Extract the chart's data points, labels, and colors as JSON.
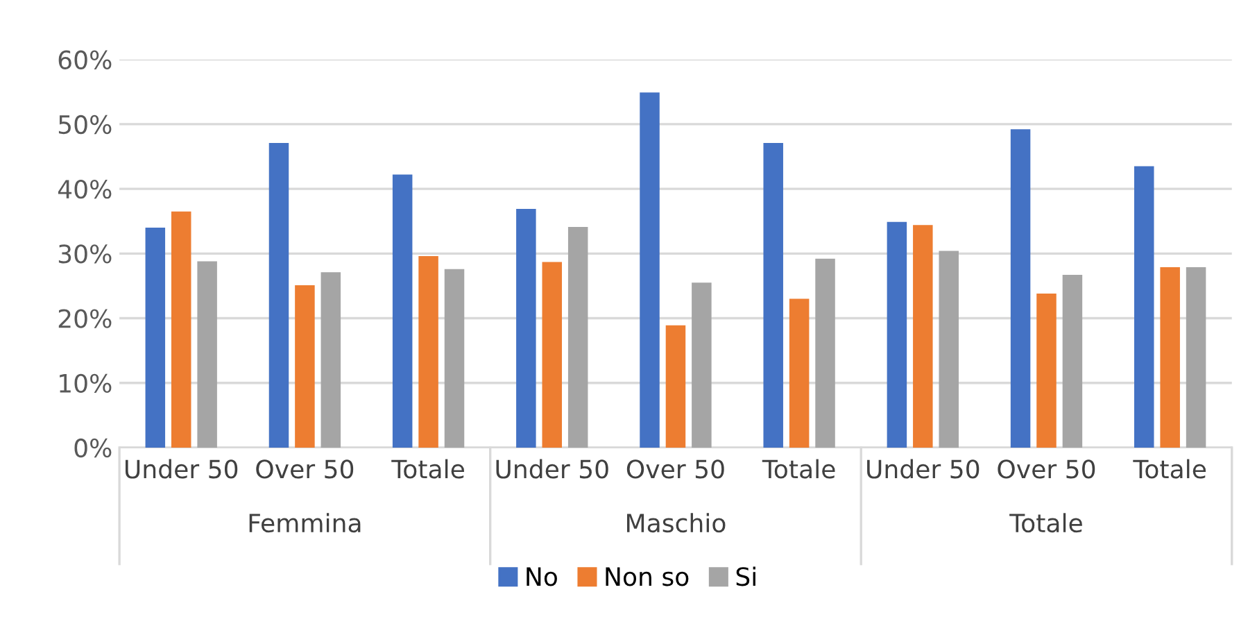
{
  "chart_data": {
    "type": "bar",
    "categories": [
      "Under 50",
      "Over 50",
      "Totale",
      "Under 50",
      "Over 50",
      "Totale",
      "Under 50",
      "Over 50",
      "Totale"
    ],
    "annotations": [
      "Femmina",
      "Maschio",
      "Totale"
    ],
    "series": [
      {
        "name": "No",
        "color": "#4472c4",
        "values": [
          34.0,
          47.1,
          42.2,
          36.9,
          54.9,
          47.1,
          34.9,
          49.2,
          43.5
        ]
      },
      {
        "name": "Non so",
        "color": "#ed7d31",
        "values": [
          36.5,
          25.1,
          29.6,
          28.7,
          18.9,
          23.0,
          34.4,
          23.8,
          27.9
        ]
      },
      {
        "name": "Si",
        "color": "#a5a5a5",
        "values": [
          28.8,
          27.1,
          27.6,
          34.1,
          25.5,
          29.2,
          30.4,
          26.7,
          27.9
        ]
      }
    ],
    "ylim": [
      0,
      60
    ],
    "yticks": [
      {
        "value": 0,
        "label": "0%"
      },
      {
        "value": 10,
        "label": "10%"
      },
      {
        "value": 20,
        "label": "20%"
      },
      {
        "value": 30,
        "label": "30%"
      },
      {
        "value": 40,
        "label": "40%"
      },
      {
        "value": 50,
        "label": "50%"
      },
      {
        "value": 60,
        "label": "60%"
      }
    ],
    "grid": "y",
    "legend": "bottom"
  }
}
